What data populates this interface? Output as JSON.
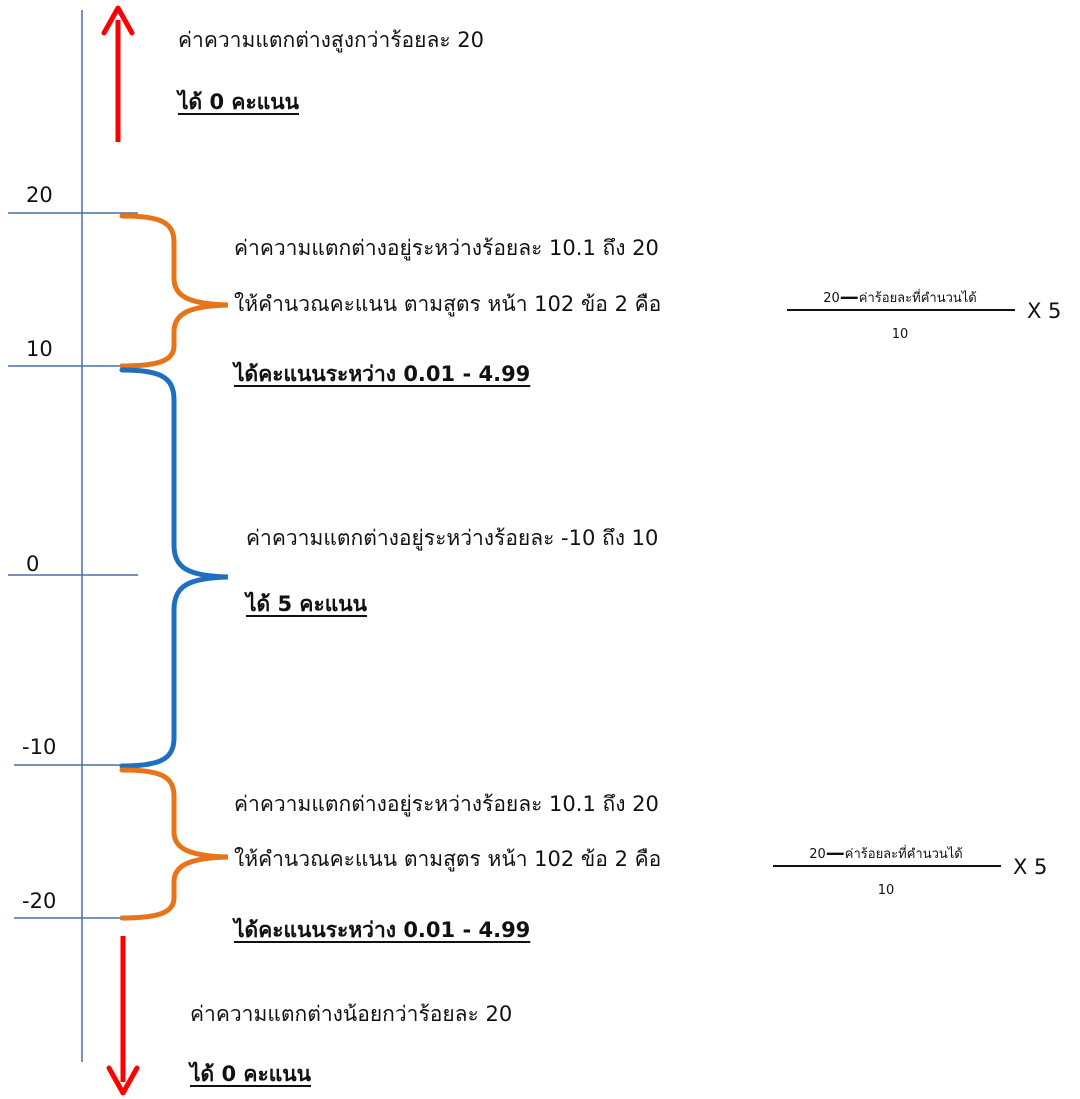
{
  "axis": {
    "ticks": [
      {
        "label": "20"
      },
      {
        "label": "10"
      },
      {
        "label": "0"
      },
      {
        "label": "-10"
      },
      {
        "label": "-20"
      }
    ]
  },
  "colors": {
    "axis": "#4a6fa5",
    "arrow": "#ff0000",
    "brace_partial": "#e8741a",
    "brace_full": "#1f6fc1",
    "text": "#111111"
  },
  "zones": {
    "above": {
      "description": "ค่าความแตกต่างสูงกว่าร้อยละ 20",
      "score": "ได้ 0 คะแนน"
    },
    "upper": {
      "description": "ค่าความแตกต่างอยู่ระหว่างร้อยละ 10.1 ถึง 20",
      "instruction": "ให้คำนวณคะแนน ตามสูตร หน้า 102 ข้อ 2 คือ",
      "score": "ได้คะแนนระหว่าง 0.01 - 4.99",
      "formula": {
        "numerator_left": "20",
        "numerator_right": "ค่าร้อยละที่คำนวนได้",
        "denominator": "10",
        "multiplier": "X 5"
      }
    },
    "middle": {
      "description": "ค่าความแตกต่างอยู่ระหว่างร้อยละ -10 ถึง 10",
      "score": "ได้ 5 คะแนน"
    },
    "lower": {
      "description": "ค่าความแตกต่างอยู่ระหว่างร้อยละ 10.1 ถึง 20",
      "instruction": "ให้คำนวณคะแนน ตามสูตร หน้า 102 ข้อ 2 คือ",
      "score": "ได้คะแนนระหว่าง 0.01 - 4.99",
      "formula": {
        "numerator_left": "20",
        "numerator_right": "ค่าร้อยละที่คำนวนได้",
        "denominator": "10",
        "multiplier": "X 5"
      }
    },
    "below": {
      "description": "ค่าความแตกต่างน้อยกว่าร้อยละ 20",
      "score": "ได้ 0 คะแนน"
    }
  }
}
